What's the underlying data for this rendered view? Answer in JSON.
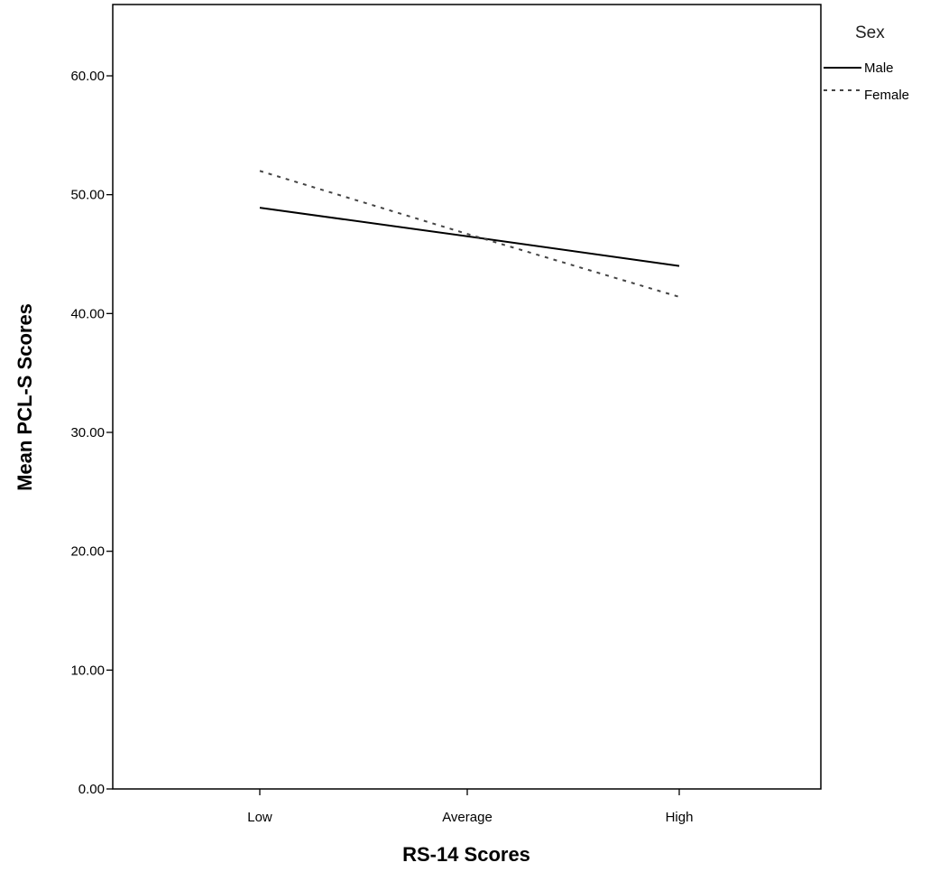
{
  "chart_data": {
    "type": "line",
    "xlabel": "RS-14 Scores",
    "ylabel": "Mean PCL-S Scores",
    "categories": [
      "Low",
      "Average",
      "High"
    ],
    "ylim": [
      0,
      66
    ],
    "yticks": [
      0,
      10,
      20,
      30,
      40,
      50,
      60
    ],
    "ytick_labels": [
      "0.00",
      "10.00",
      "20.00",
      "30.00",
      "40.00",
      "50.00",
      "60.00"
    ],
    "grid": false,
    "legend": {
      "title": "Sex",
      "placement": "top-right, outside plot"
    },
    "series": [
      {
        "name": "Male",
        "style": "solid",
        "values": [
          48.9,
          46.5,
          44.0
        ]
      },
      {
        "name": "Female",
        "style": "dotted",
        "values": [
          52.0,
          46.7,
          41.4
        ]
      }
    ]
  }
}
